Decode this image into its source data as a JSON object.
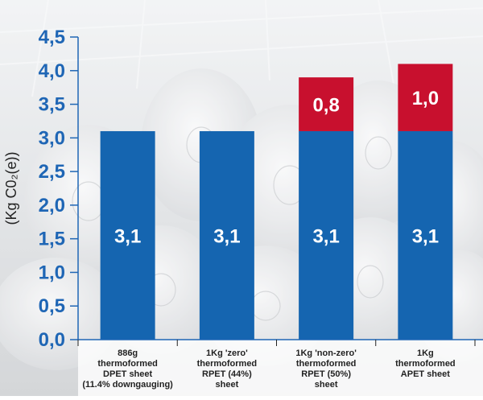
{
  "chart_data": {
    "type": "bar",
    "stacked": true,
    "categories": [
      [
        "886g",
        "thermoformed",
        "DPET sheet",
        "(11.4% downgauging)"
      ],
      [
        "1Kg 'zero'",
        "thermoformed",
        "RPET (44%)",
        "sheet"
      ],
      [
        "1Kg 'non-zero'",
        "thermoformed",
        "RPET (50%)",
        "sheet"
      ],
      [
        "1Kg",
        "thermoformed",
        "APET sheet"
      ]
    ],
    "series": [
      {
        "values": [
          3.1,
          3.1,
          3.1,
          3.1
        ],
        "labels": [
          "3,1",
          "3,1",
          "3,1",
          "3,1"
        ],
        "color": "#1565b0"
      },
      {
        "values": [
          0,
          0,
          0.8,
          1.0
        ],
        "labels": [
          "",
          "",
          "0,8",
          "1,0"
        ],
        "color": "#c8102e"
      }
    ],
    "ylabel": "(Kg C0₂(e))",
    "ylim": [
      0,
      4.5
    ],
    "yticks": [
      0,
      0.5,
      1.0,
      1.5,
      2.0,
      2.5,
      3.0,
      3.5,
      4.0,
      4.5
    ],
    "ytick_labels": [
      "0,0",
      "0,5",
      "1,0",
      "1,5",
      "2,0",
      "2,5",
      "3,0",
      "3,5",
      "4,0",
      "4,5"
    ],
    "grid": false,
    "axis_color": "#1f66b5",
    "background": "grayscale photo of stacked plastic sheet rolls in a warehouse"
  }
}
